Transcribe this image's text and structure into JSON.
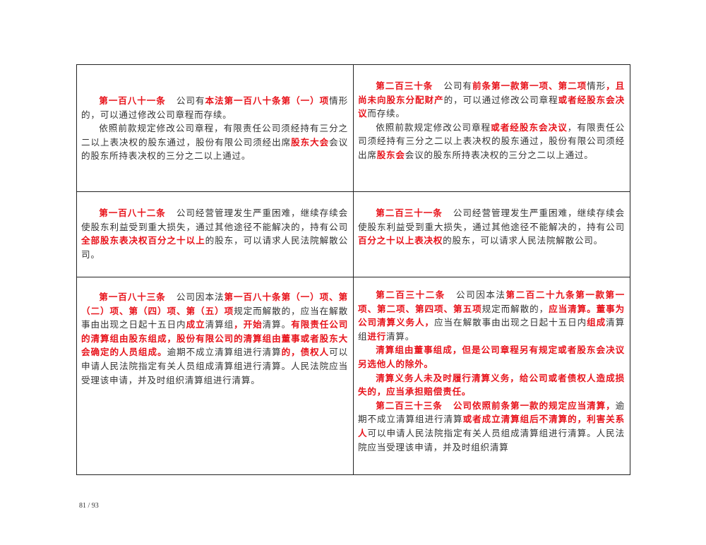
{
  "table": {
    "rows": [
      {
        "left": [
          [
            [
              "第一百八十一条",
              true,
              true
            ],
            [
              "公司有",
              false
            ],
            [
              "本法第一百八十条第（一）项",
              true
            ],
            [
              "情形的，可以通过修改公司章程而存续。",
              false
            ]
          ],
          [
            [
              "依照前款规定修改公司章程，有限责任公司须经持有三分之二以上表决权的股东通过，股份有限公司须经出席",
              false
            ],
            [
              "股东大会",
              true
            ],
            [
              "会议的股东所持表决权的三分之二以上通过。",
              false
            ]
          ]
        ],
        "right": [
          [
            [
              "第二百三十条",
              true,
              true
            ],
            [
              "公司有",
              false
            ],
            [
              "前条第一款第一项、第二项",
              true
            ],
            [
              "情形",
              false
            ],
            [
              "，且尚未向股东分配财产",
              true
            ],
            [
              "的，可以通过修改公司章程",
              false
            ],
            [
              "或者经股东会决议",
              true
            ],
            [
              "而存续。",
              false
            ]
          ],
          [
            [
              "依照前款规定修改公司章程",
              false
            ],
            [
              "或者经股东会决议",
              true
            ],
            [
              "，有限责任公司须经持有三分之二以上表决权的股东通过，股份有限公司须经出席",
              false
            ],
            [
              "股东会",
              true
            ],
            [
              "会议的股东所持表决权的三分之二以上通过。",
              false
            ]
          ]
        ]
      },
      {
        "left": [
          [
            [
              "第一百八十二条",
              true,
              true
            ],
            [
              "公司经营管理发生严重困难，继续存续会使股东利益受到重大损失，通过其他途径不能解决的，持有公司",
              false
            ],
            [
              "全部股东表决权百分之十以上",
              true
            ],
            [
              "的股东，可以请求人民法院解散公司。",
              false
            ]
          ]
        ],
        "right": [
          [
            [
              "第二百三十一条",
              true,
              true
            ],
            [
              "公司经营管理发生严重困难，继续存续会使股东利益受到重大损失，通过其他途径不能解决的，持有公司",
              false
            ],
            [
              "百分之十以上表决权",
              true
            ],
            [
              "的股东，可以请求人民法院解散公司。",
              false
            ]
          ]
        ]
      },
      {
        "left": [
          [
            [
              "第一百八十三条",
              true,
              true
            ],
            [
              "公司因本法",
              false
            ],
            [
              "第一百八十条第（一）项、第（二）项、第（四）项、第（五）项",
              true
            ],
            [
              "规定而解散的，应当在解散事由出现之日起十五日内",
              false
            ],
            [
              "成立",
              true
            ],
            [
              "清算组",
              false
            ],
            [
              "，开始",
              true
            ],
            [
              "清算。",
              false
            ],
            [
              "有限责任公司的清算组由股东组成，股份有限公司的清算组由董事或者股东大会确定的人员组成。",
              true
            ],
            [
              "逾期不成立清算组进行清算",
              false
            ],
            [
              "的，债权人",
              true
            ],
            [
              "可以申请人民法院指定有关人员组成清算组进行清算。人民法院应当受理该申请，并及时组织清算组进行清算。",
              false
            ]
          ]
        ],
        "right": [
          [
            [
              "第二百三十二条",
              true,
              true
            ],
            [
              "公司因本法",
              false
            ],
            [
              "第二百二十九条第一款第一项、第二项、第四项、第五项",
              true
            ],
            [
              "规定而解散的，",
              false
            ],
            [
              "应当清算。董事为公司清算义务人，",
              true
            ],
            [
              "应当在解散事由出现之日起十五日内",
              false
            ],
            [
              "组成",
              true
            ],
            [
              "清算组",
              false
            ],
            [
              "进行",
              true
            ],
            [
              "清算。",
              false
            ]
          ],
          [
            [
              "清算组由董事组成，但是公司章程另有规定或者股东会决议另选他人的除外。",
              true
            ]
          ],
          [
            [
              "清算义务人未及时履行清算义务，给公司或者债权人造成损失的，应当承担赔偿责任。",
              true
            ]
          ],
          [
            [
              "第二百三十三条",
              true,
              true
            ],
            [
              "公司依照前条第一款的规定应当清算，",
              true
            ],
            [
              "逾期不成立清算组进行清算",
              false
            ],
            [
              "或者成立清算组后不清算的，利害关系人",
              true
            ],
            [
              "可以申请人民法院指定有关人员组成清算组进行清算。人民法院应当受理该申请，并及时组织清算",
              false
            ]
          ]
        ]
      }
    ]
  },
  "footer": {
    "page_number": "81 / 93"
  },
  "colors": {
    "highlight": "#e8141c",
    "text": "#333333",
    "border": "#222222"
  }
}
